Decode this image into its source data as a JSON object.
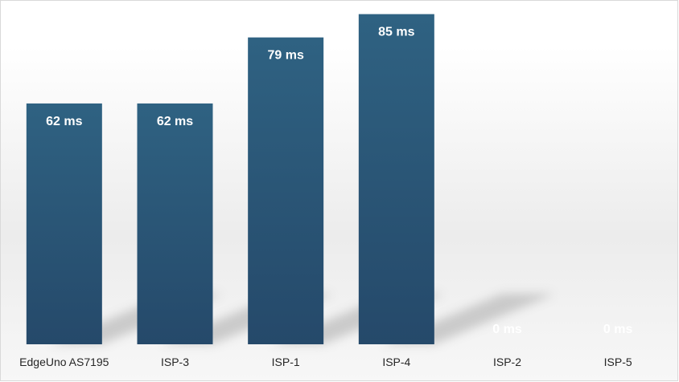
{
  "chart_data": {
    "type": "bar",
    "categories": [
      "EdgeUno AS7195",
      "ISP-3",
      "ISP-1",
      "ISP-4",
      "ISP-2",
      "ISP-5"
    ],
    "values": [
      62,
      62,
      79,
      85,
      0,
      0
    ],
    "data_labels": [
      "62 ms",
      "62 ms",
      "79 ms",
      "85 ms",
      "0 ms",
      "0 ms"
    ],
    "title": "",
    "xlabel": "",
    "ylabel": "",
    "ylim": [
      0,
      100
    ],
    "grid": false,
    "legend": "none",
    "colors": {
      "bar": "#2e5b7b",
      "bar_dark": "#244a66",
      "label": "#ffffff",
      "axis_text": "#262626"
    }
  }
}
